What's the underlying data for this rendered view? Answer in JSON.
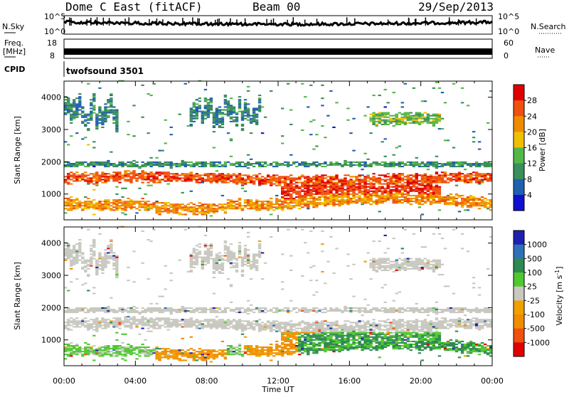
{
  "header": {
    "station": "Dome C East (fitACF)",
    "beam": "Beam 00",
    "date": "29/Sep/2013"
  },
  "panels": {
    "nsky": {
      "label": "N.Sky",
      "y_ticks_left": [
        "10^5",
        "10^0"
      ],
      "y_ticks_right": [
        "10^5",
        "10^0"
      ],
      "right_label": "N.Search"
    },
    "freq": {
      "label_line1": "Freq.",
      "label_line2": "[MHz]",
      "y_ticks_left": [
        "18",
        "8"
      ],
      "y_ticks_right": [
        "60",
        "0"
      ],
      "right_label": "Nave"
    },
    "cpid": {
      "label": "CPID",
      "value": "twofsound 3501"
    }
  },
  "colors": {
    "power": [
      "#1010d0",
      "#2060b0",
      "#3a8f5a",
      "#54b848",
      "#f0c000",
      "#f08c00",
      "#f05010",
      "#e00000"
    ],
    "velocity": [
      "#e00000",
      "#f05010",
      "#f08c00",
      "#f0a000",
      "#c8c8c0",
      "#50c830",
      "#2e8a50",
      "#3070b8",
      "#2020b0"
    ]
  },
  "chart_data": [
    {
      "type": "heatmap",
      "name": "power",
      "ylabel": "Slant Range [km]",
      "xlabel": "",
      "ylim": [
        200,
        4500
      ],
      "xlim": [
        0,
        24
      ],
      "y_ticks": [
        "1000",
        "2000",
        "3000",
        "4000"
      ],
      "x_ticks": [
        "00:00",
        "04:00",
        "08:00",
        "12:00",
        "16:00",
        "20:00",
        "00:00"
      ],
      "colorbar": {
        "label": "Power [dB]",
        "ticks": [
          "4",
          "8",
          "12",
          "16",
          "20",
          "24",
          "28"
        ],
        "range": [
          0,
          32
        ]
      }
    },
    {
      "type": "heatmap",
      "name": "velocity",
      "ylabel": "Slant Range [km]",
      "xlabel": "Time UT",
      "ylim": [
        200,
        4500
      ],
      "xlim": [
        0,
        24
      ],
      "y_ticks": [
        "1000",
        "2000",
        "3000",
        "4000"
      ],
      "x_ticks": [
        "00:00",
        "04:00",
        "08:00",
        "12:00",
        "16:00",
        "20:00",
        "00:00"
      ],
      "colorbar": {
        "label": "Velocity [m s",
        "label_sup": "-1",
        "label_end": "]",
        "ticks": [
          "1000",
          "500",
          "100",
          "25",
          "-25",
          "-100",
          "-500",
          "-1000"
        ]
      }
    }
  ]
}
